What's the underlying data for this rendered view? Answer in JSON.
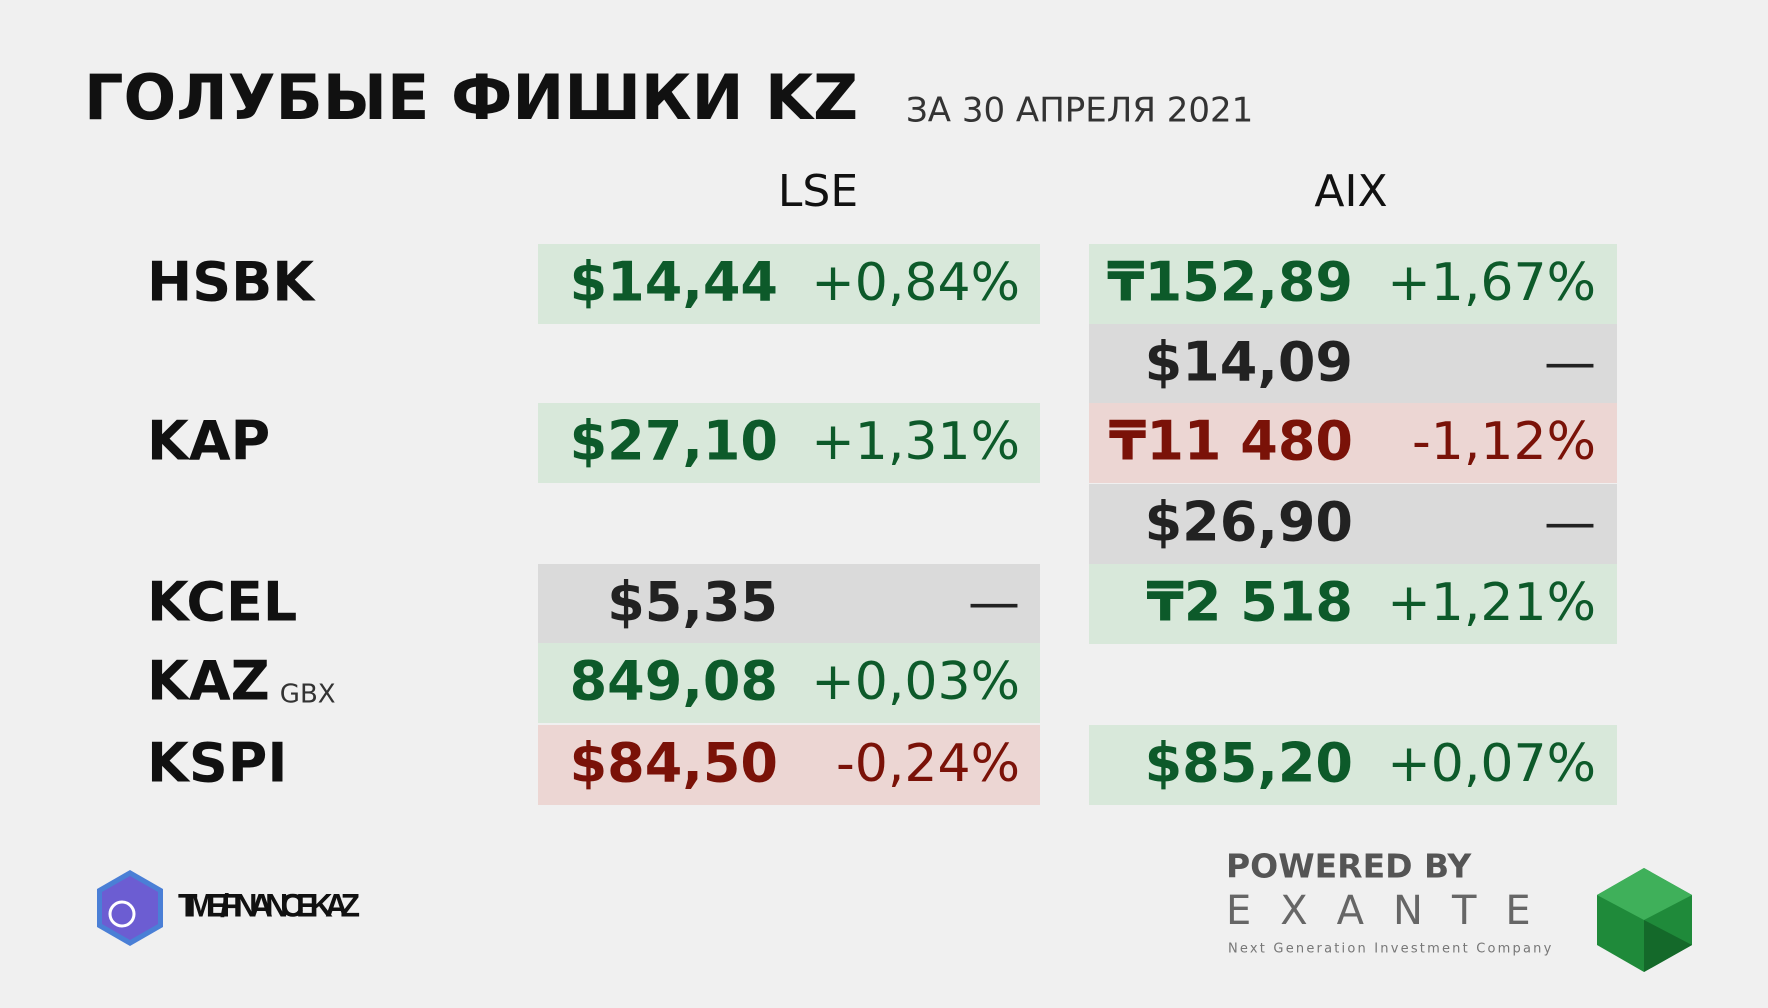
{
  "header": {
    "title": "ГОЛУБЫЕ ФИШКИ KZ",
    "subtitle": "ЗА 30 АПРЕЛЯ 2021"
  },
  "columns": [
    "LSE",
    "AIX"
  ],
  "rows": [
    {
      "ticker": "HSBK",
      "lse": {
        "price": "$14,44",
        "change": "+0,84%",
        "color": "#0d5a2a"
      },
      "aix": {
        "price": "₸152,89",
        "change": "+1,67%",
        "color": "#0d5a2a"
      }
    },
    {
      "aix": {
        "price": "$14,09",
        "change": "—",
        "color": "#222222"
      }
    },
    {
      "ticker": "KAP",
      "lse": {
        "price": "$27,10",
        "change": "+1,31%",
        "color": "#0d5a2a"
      },
      "aix": {
        "price": "₸11 480",
        "change": "-1,12%",
        "color": "#7a1208"
      }
    },
    {
      "aix": {
        "price": "$26,90",
        "change": "—",
        "color": "#222222"
      }
    },
    {
      "ticker": "KCEL",
      "lse": {
        "price": "$5,35",
        "change": "—",
        "color": "#222222"
      },
      "aix": {
        "price": "₸2 518",
        "change": "+1,21%",
        "color": "#0d5a2a"
      }
    },
    {
      "ticker": "KAZ",
      "note": "GBX",
      "lse": {
        "price": "849,08",
        "change": "+0,03%",
        "color": "#0d5a2a"
      }
    },
    {
      "ticker": "KSPI",
      "lse": {
        "price": "$84,50",
        "change": "-0,24%",
        "color": "#7a1208"
      },
      "aix": {
        "price": "$85,20",
        "change": "+0,07%",
        "color": "#0d5a2a"
      }
    }
  ],
  "footer": {
    "channel": "T.ME/FINANCEKAZ",
    "powered": "POWERED BY",
    "brand": "EXANTE",
    "tagline": "Next Generation Investment Company"
  }
}
